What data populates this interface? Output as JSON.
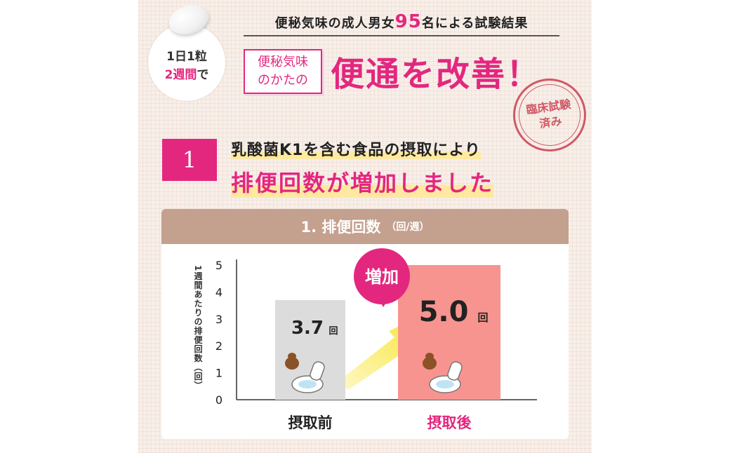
{
  "badge": {
    "line1": "1日1粒",
    "line2_pink": "2週間",
    "line2_rest": "で"
  },
  "test": {
    "prefix": "便秘気味の成人男女",
    "count": "95",
    "suffix": "名による試験結果"
  },
  "target": {
    "line1": "便秘気味",
    "line2": "のかたの"
  },
  "headline": "便通を改善！",
  "stamp": {
    "line1": "臨床試験",
    "line2": "済み"
  },
  "finding": {
    "number": "1",
    "line1": "乳酸菌K1を含む食品の摂取により",
    "line2": "排便回数が増加しました"
  },
  "chart_header": {
    "title": "1. 排便回数",
    "unit": "（回/週）"
  },
  "colors": {
    "accent": "#e3277f",
    "header_bg": "#c4a08e",
    "bar_before": "#dcdcdc",
    "bar_after": "#f7948f"
  },
  "chart_data": {
    "type": "bar",
    "categories": [
      "摂取前",
      "摂取後"
    ],
    "values": [
      3.7,
      5.0
    ],
    "value_labels": [
      "3.7",
      "5.0"
    ],
    "value_unit": "回",
    "ylabel": "1週間あたりの排便回数（回）",
    "yticks": [
      "0",
      "1",
      "2",
      "3",
      "4",
      "5"
    ],
    "ylim": [
      0,
      5
    ],
    "callout": "増加",
    "grid": false
  }
}
